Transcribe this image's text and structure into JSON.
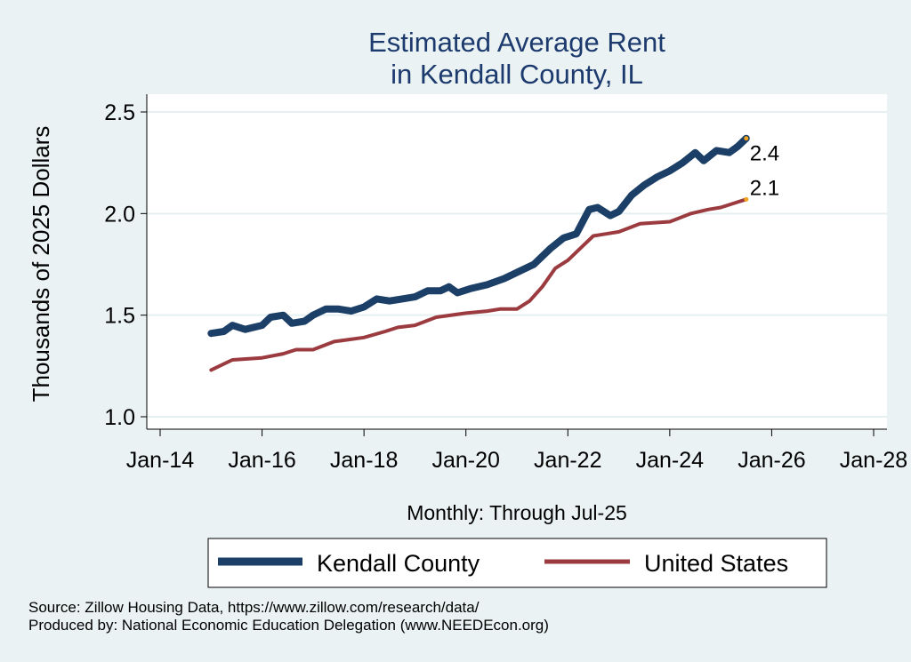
{
  "chart_data": {
    "type": "line",
    "title_lines": [
      "Estimated Average Rent",
      "in Kendall County, IL"
    ],
    "ylabel": "Thousands of 2025 Dollars",
    "xlabel": "Monthly: Through Jul-25",
    "ylim": [
      1.0,
      2.5
    ],
    "yticks": [
      1.0,
      1.5,
      2.0,
      2.5
    ],
    "ytick_labels": [
      "1.0",
      "1.5",
      "2.0",
      "2.5"
    ],
    "xlim": [
      "2014-01",
      "2028-01"
    ],
    "xticks": [
      "2014-01",
      "2016-01",
      "2018-01",
      "2020-01",
      "2022-01",
      "2024-01",
      "2026-01",
      "2028-01"
    ],
    "xtick_labels": [
      "Jan-14",
      "Jan-16",
      "Jan-18",
      "Jan-20",
      "Jan-22",
      "Jan-24",
      "Jan-26",
      "Jan-28"
    ],
    "grid": true,
    "legend_position": "bottom",
    "series": [
      {
        "name": "Kendall County",
        "color": "#1b3f66",
        "end_label": "2.4",
        "points": [
          [
            "2015-01",
            1.41
          ],
          [
            "2015-04",
            1.42
          ],
          [
            "2015-06",
            1.45
          ],
          [
            "2015-09",
            1.43
          ],
          [
            "2016-01",
            1.45
          ],
          [
            "2016-03",
            1.49
          ],
          [
            "2016-06",
            1.5
          ],
          [
            "2016-08",
            1.46
          ],
          [
            "2016-11",
            1.47
          ],
          [
            "2017-01",
            1.5
          ],
          [
            "2017-04",
            1.53
          ],
          [
            "2017-07",
            1.53
          ],
          [
            "2017-10",
            1.52
          ],
          [
            "2018-01",
            1.54
          ],
          [
            "2018-04",
            1.58
          ],
          [
            "2018-07",
            1.57
          ],
          [
            "2018-10",
            1.58
          ],
          [
            "2019-01",
            1.59
          ],
          [
            "2019-04",
            1.62
          ],
          [
            "2019-07",
            1.62
          ],
          [
            "2019-09",
            1.64
          ],
          [
            "2019-11",
            1.61
          ],
          [
            "2020-02",
            1.63
          ],
          [
            "2020-06",
            1.65
          ],
          [
            "2020-10",
            1.68
          ],
          [
            "2021-01",
            1.71
          ],
          [
            "2021-05",
            1.75
          ],
          [
            "2021-09",
            1.83
          ],
          [
            "2021-12",
            1.88
          ],
          [
            "2022-03",
            1.9
          ],
          [
            "2022-06",
            2.02
          ],
          [
            "2022-08",
            2.03
          ],
          [
            "2022-11",
            1.99
          ],
          [
            "2023-01",
            2.01
          ],
          [
            "2023-04",
            2.09
          ],
          [
            "2023-07",
            2.14
          ],
          [
            "2023-10",
            2.18
          ],
          [
            "2024-01",
            2.21
          ],
          [
            "2024-04",
            2.25
          ],
          [
            "2024-07",
            2.3
          ],
          [
            "2024-09",
            2.26
          ],
          [
            "2024-12",
            2.31
          ],
          [
            "2025-03",
            2.3
          ],
          [
            "2025-05",
            2.33
          ],
          [
            "2025-07",
            2.37
          ]
        ]
      },
      {
        "name": "United States",
        "color": "#9b3b3f",
        "end_label": "2.1",
        "points": [
          [
            "2015-01",
            1.23
          ],
          [
            "2015-06",
            1.28
          ],
          [
            "2016-01",
            1.29
          ],
          [
            "2016-06",
            1.31
          ],
          [
            "2016-09",
            1.33
          ],
          [
            "2017-01",
            1.33
          ],
          [
            "2017-06",
            1.37
          ],
          [
            "2018-01",
            1.39
          ],
          [
            "2018-06",
            1.42
          ],
          [
            "2018-09",
            1.44
          ],
          [
            "2019-01",
            1.45
          ],
          [
            "2019-06",
            1.49
          ],
          [
            "2020-01",
            1.51
          ],
          [
            "2020-06",
            1.52
          ],
          [
            "2020-09",
            1.53
          ],
          [
            "2021-01",
            1.53
          ],
          [
            "2021-04",
            1.57
          ],
          [
            "2021-07",
            1.64
          ],
          [
            "2021-10",
            1.73
          ],
          [
            "2022-01",
            1.77
          ],
          [
            "2022-04",
            1.83
          ],
          [
            "2022-07",
            1.89
          ],
          [
            "2022-10",
            1.9
          ],
          [
            "2023-01",
            1.91
          ],
          [
            "2023-06",
            1.95
          ],
          [
            "2024-01",
            1.96
          ],
          [
            "2024-06",
            2.0
          ],
          [
            "2024-10",
            2.02
          ],
          [
            "2025-01",
            2.03
          ],
          [
            "2025-04",
            2.05
          ],
          [
            "2025-07",
            2.07
          ]
        ]
      }
    ],
    "end_marker_color": "#f0a31b"
  },
  "source_lines": [
    "Source: Zillow Housing Data, https://www.zillow.com/research/data/",
    "Produced by: National Economic Education Delegation (www.NEEDEcon.org)"
  ]
}
